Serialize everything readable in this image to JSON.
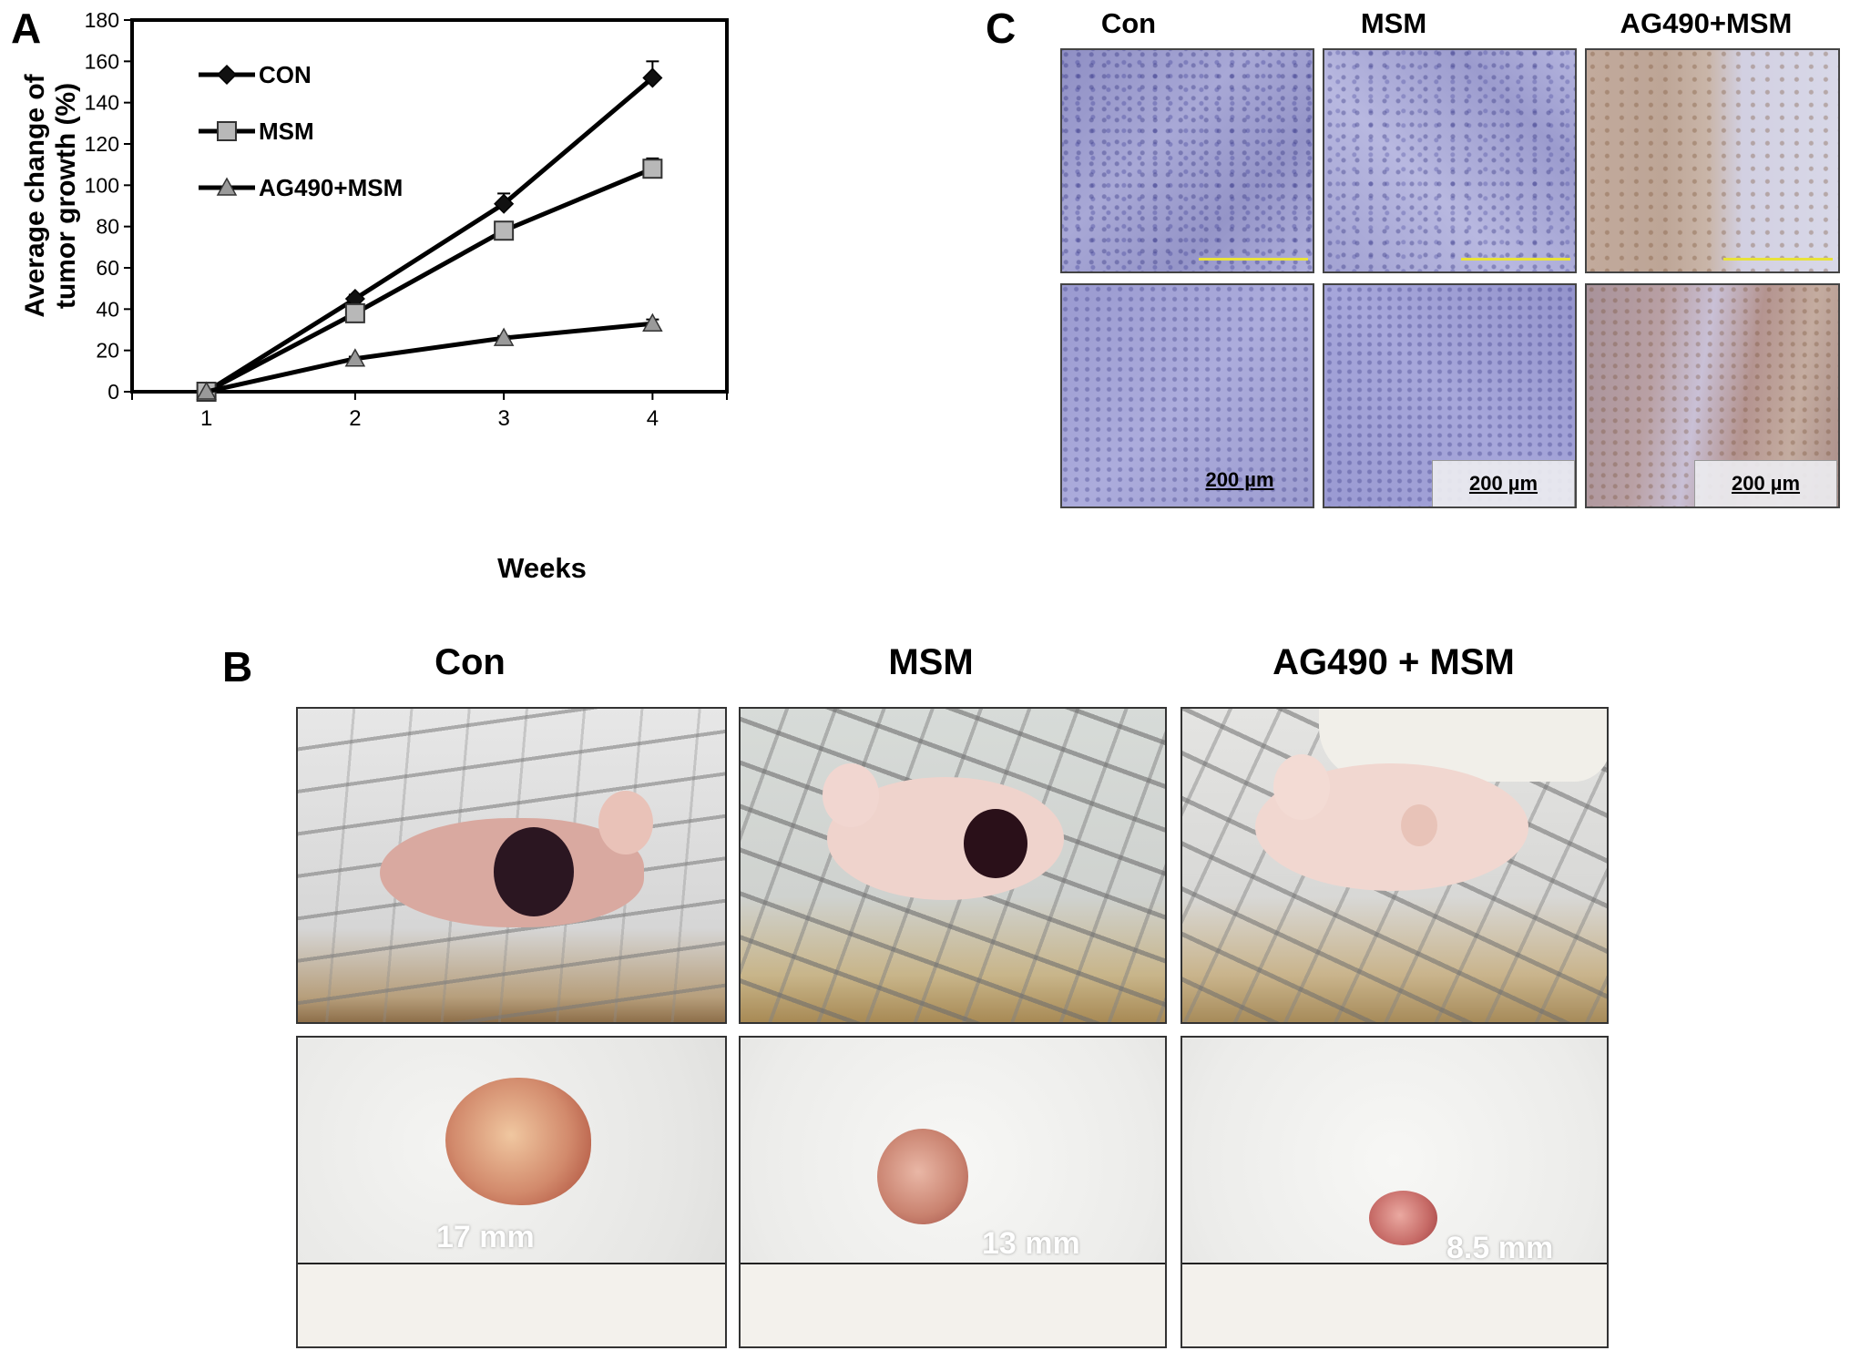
{
  "panels": {
    "a": {
      "letter": "A"
    },
    "b": {
      "letter": "B",
      "conditions": [
        "Con",
        "MSM",
        "AG490 + MSM"
      ],
      "measurements": [
        "17 mm",
        "13 mm",
        "8.5 mm"
      ]
    },
    "c": {
      "letter": "C",
      "conditions": [
        "Con",
        "MSM",
        "AG490+MSM"
      ],
      "scale_bar": "200 µm"
    }
  },
  "chart_data": {
    "type": "line",
    "xlabel": "Weeks",
    "ylabel": "Average change of tumor growth (%)",
    "ylabel_lines": [
      "Average change of",
      "tumor growth (%)"
    ],
    "x": [
      1,
      2,
      3,
      4
    ],
    "xlim": [
      0.5,
      4.5
    ],
    "ylim": [
      0,
      180
    ],
    "yticks": [
      0,
      20,
      40,
      60,
      80,
      100,
      120,
      140,
      160,
      180
    ],
    "legend_position": "top-left",
    "series": [
      {
        "name": "CON",
        "marker": "diamond",
        "marker_color": "#111111",
        "values": [
          0,
          45,
          91,
          152
        ],
        "errors": [
          0,
          2,
          5,
          8
        ]
      },
      {
        "name": "MSM",
        "marker": "square",
        "marker_color": "#b8b8b8",
        "values": [
          0,
          38,
          78,
          108
        ],
        "errors": [
          0,
          2,
          2,
          5
        ]
      },
      {
        "name": "AG490+MSM",
        "marker": "triangle",
        "marker_color": "#9a9a9a",
        "values": [
          0,
          16,
          26,
          33
        ],
        "errors": [
          0,
          1,
          1,
          2
        ]
      }
    ]
  }
}
